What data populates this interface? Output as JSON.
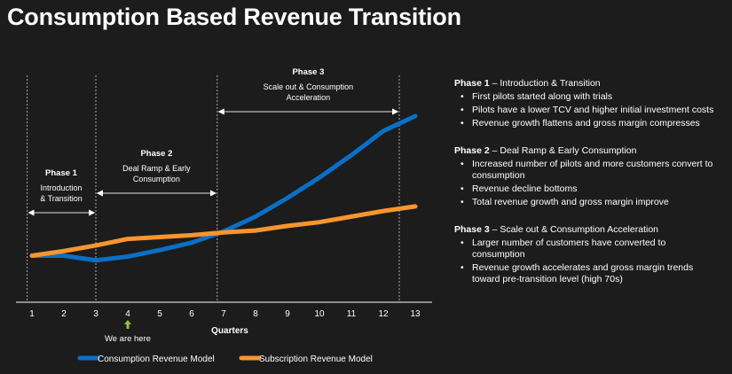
{
  "title": "Consumption Based Revenue Transition",
  "chart_data": {
    "type": "line",
    "x": [
      1,
      2,
      3,
      4,
      5,
      6,
      7,
      8,
      9,
      10,
      11,
      12,
      13
    ],
    "xlabel": "Quarters",
    "ylabel": "",
    "grid": false,
    "legend": "bottom",
    "series": [
      {
        "name": "Consumption Revenue Model",
        "color": "#0a6fc7",
        "values": [
          25,
          25,
          22.5,
          24.5,
          28,
          32,
          38,
          46,
          56,
          67,
          79,
          92,
          100
        ]
      },
      {
        "name": "Subscription Revenue Model",
        "color": "#f7952e",
        "values": [
          25,
          27.5,
          30.5,
          34,
          35,
          36,
          37.5,
          38.5,
          41,
          43,
          46,
          49,
          51.5
        ]
      }
    ],
    "phases": [
      {
        "title": "Phase 1",
        "subtitle": [
          "Introduction",
          "& Transition"
        ],
        "range": [
          0.85,
          3
        ]
      },
      {
        "title": "Phase 2",
        "subtitle": [
          "Deal Ramp & Early",
          "Consumption"
        ],
        "range": [
          3,
          6.8
        ]
      },
      {
        "title": "Phase 3",
        "subtitle": [
          "Scale out & Consumption",
          "Acceleration"
        ],
        "range": [
          6.8,
          12.5
        ]
      }
    ],
    "marker": {
      "x": 4,
      "label": "We are here",
      "color": "#8dc63f"
    }
  },
  "notes": [
    {
      "title": "Phase 1",
      "subtitle": "Introduction & Transition",
      "bullets": [
        "First pilots started along with trials",
        "Pilots have a lower TCV and higher initial investment costs",
        "Revenue growth flattens and gross margin compresses"
      ]
    },
    {
      "title": "Phase 2",
      "subtitle": "Deal Ramp & Early Consumption",
      "bullets": [
        "Increased number of pilots and more customers convert to consumption",
        "Revenue decline bottoms",
        "Total revenue growth and gross margin improve"
      ]
    },
    {
      "title": "Phase 3",
      "subtitle": "Scale out & Consumption Acceleration",
      "bullets": [
        "Larger number of customers have converted to consumption",
        "Revenue growth accelerates and gross margin trends toward pre-transition level (high 70s)"
      ]
    }
  ]
}
